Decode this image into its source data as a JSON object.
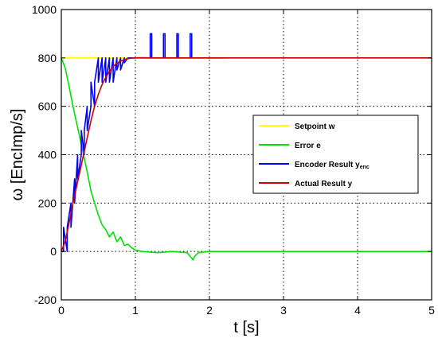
{
  "chart_data": {
    "type": "line",
    "xlabel": "t [s]",
    "ylabel": "ω [EncImp/s]",
    "xlim": [
      0,
      5
    ],
    "ylim": [
      -200,
      1000
    ],
    "xticks": [
      0,
      1,
      2,
      3,
      4,
      5
    ],
    "yticks": [
      -200,
      0,
      200,
      400,
      600,
      800,
      1000
    ],
    "grid": true,
    "legend_position": "right",
    "series": [
      {
        "name": "Setpoint w",
        "color": "#ffff00",
        "x": [
          0,
          0.6,
          0.6,
          5
        ],
        "y": [
          800,
          800,
          800,
          800
        ]
      },
      {
        "name": "Error e",
        "color": "#00e000",
        "x": [
          0,
          0.05,
          0.1,
          0.15,
          0.2,
          0.25,
          0.3,
          0.35,
          0.4,
          0.45,
          0.5,
          0.55,
          0.6,
          0.65,
          0.7,
          0.75,
          0.8,
          0.85,
          0.9,
          0.95,
          1.0,
          1.1,
          1.3,
          1.5,
          1.7,
          1.78,
          1.8,
          1.85,
          2.0,
          2.5,
          3,
          4,
          5
        ],
        "y": [
          800,
          760,
          690,
          610,
          540,
          470,
          400,
          330,
          250,
          200,
          150,
          110,
          90,
          60,
          80,
          40,
          60,
          25,
          30,
          15,
          5,
          0,
          -5,
          0,
          -5,
          -35,
          -20,
          -5,
          0,
          0,
          0,
          0,
          0
        ]
      },
      {
        "name": "Encoder Result y_enc",
        "color": "#0000ff",
        "x": [
          0,
          0.03,
          0.03,
          0.08,
          0.08,
          0.13,
          0.13,
          0.18,
          0.18,
          0.22,
          0.22,
          0.27,
          0.27,
          0.31,
          0.31,
          0.35,
          0.35,
          0.4,
          0.4,
          0.45,
          0.45,
          0.5,
          0.5,
          0.55,
          0.55,
          0.6,
          0.6,
          0.65,
          0.65,
          0.7,
          0.7,
          0.75,
          0.75,
          0.8,
          0.8,
          0.85,
          0.85,
          0.9,
          0.9,
          0.95,
          0.95,
          1.0,
          1.0,
          1.2,
          1.2,
          1.22,
          1.22,
          1.38,
          1.38,
          1.4,
          1.4,
          1.56,
          1.56,
          1.58,
          1.58,
          1.74,
          1.74,
          1.76,
          1.76,
          2.2
        ],
        "y": [
          0,
          0,
          100,
          0,
          100,
          200,
          100,
          300,
          200,
          400,
          300,
          400,
          500,
          400,
          500,
          600,
          500,
          600,
          700,
          600,
          700,
          800,
          700,
          800,
          700,
          800,
          700,
          800,
          700,
          800,
          700,
          800,
          750,
          800,
          750,
          800,
          780,
          800,
          800,
          800,
          800,
          800,
          800,
          800,
          900,
          900,
          800,
          800,
          900,
          900,
          800,
          800,
          900,
          900,
          800,
          800,
          900,
          900,
          800,
          800
        ]
      },
      {
        "name": "Actual Result y",
        "color": "#cc0000",
        "x": [
          0,
          0.05,
          0.1,
          0.15,
          0.2,
          0.25,
          0.3,
          0.35,
          0.4,
          0.45,
          0.5,
          0.55,
          0.6,
          0.65,
          0.7,
          0.75,
          0.8,
          0.85,
          0.9,
          0.95,
          1.0,
          1.1,
          1.2,
          1.5,
          2,
          3,
          4,
          5
        ],
        "y": [
          0,
          40,
          110,
          190,
          260,
          330,
          400,
          470,
          540,
          600,
          650,
          690,
          720,
          745,
          765,
          778,
          787,
          793,
          797,
          799,
          800,
          801,
          800,
          800,
          800,
          800,
          800,
          800
        ]
      }
    ],
    "legend": [
      {
        "label": "Setpoint w",
        "color": "#ffff00"
      },
      {
        "label": "Error e",
        "color": "#00e000"
      },
      {
        "label": "Encoder Result  y",
        "sub": "enc",
        "color": "#0000ff"
      },
      {
        "label": "Actual Result y",
        "color": "#cc0000"
      }
    ]
  }
}
